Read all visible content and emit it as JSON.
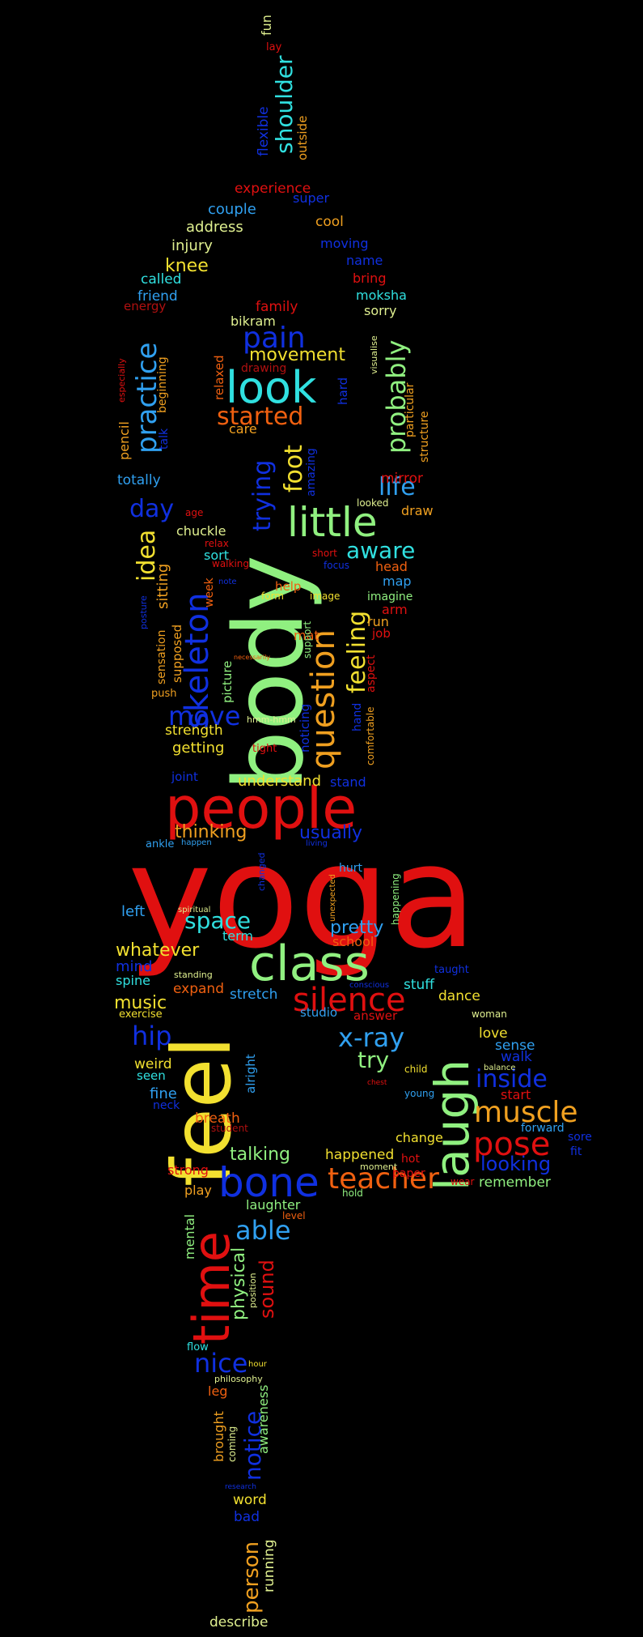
{
  "palette": {
    "background": "#000000",
    "red": "#e01010",
    "orange": "#f07a20",
    "yellow": "#f2e030",
    "green": "#90f080",
    "cyan": "#30e0e0",
    "sky": "#30a0f0",
    "blue": "#1030e0",
    "lightyellow": "#e0f090",
    "darkred": "#b01010"
  },
  "words": [
    {
      "t": "yoga",
      "c": "#e01010"
    },
    {
      "t": "body",
      "c": "#90f080"
    },
    {
      "t": "feel",
      "c": "#f2e030"
    },
    {
      "t": "people",
      "c": "#e01010"
    },
    {
      "t": "class",
      "c": "#90f080"
    },
    {
      "t": "time",
      "c": "#e01010"
    },
    {
      "t": "laugh",
      "c": "#90f080"
    },
    {
      "t": "bone",
      "c": "#1030e0"
    },
    {
      "t": "look",
      "c": "#30e0e0"
    },
    {
      "t": "little",
      "c": "#90f080"
    },
    {
      "t": "skeleton",
      "c": "#1030e0"
    },
    {
      "t": "question",
      "c": "#f0a020"
    },
    {
      "t": "silence",
      "c": "#e01010"
    },
    {
      "t": "pose",
      "c": "#e01010"
    },
    {
      "t": "teacher",
      "c": "#f06010"
    },
    {
      "t": "muscle",
      "c": "#f0a020"
    },
    {
      "t": "x-ray",
      "c": "#30a0f0"
    },
    {
      "t": "practice",
      "c": "#30a0f0"
    },
    {
      "t": "pain",
      "c": "#1030e0"
    },
    {
      "t": "started",
      "c": "#f06010"
    },
    {
      "t": "probably",
      "c": "#90f080"
    },
    {
      "t": "inside",
      "c": "#1030e0"
    },
    {
      "t": "able",
      "c": "#30a0f0"
    },
    {
      "t": "nice",
      "c": "#1030e0"
    },
    {
      "t": "move",
      "c": "#1030e0"
    },
    {
      "t": "hip",
      "c": "#1030e0"
    },
    {
      "t": "space",
      "c": "#30e0e0"
    },
    {
      "t": "day",
      "c": "#1030e0"
    },
    {
      "t": "life",
      "c": "#30a0f0"
    },
    {
      "t": "aware",
      "c": "#30e0e0"
    },
    {
      "t": "foot",
      "c": "#f2e030"
    },
    {
      "t": "trying",
      "c": "#1030e0"
    },
    {
      "t": "idea",
      "c": "#f2e030"
    },
    {
      "t": "feeling",
      "c": "#f2e030"
    },
    {
      "t": "shoulder",
      "c": "#30e0e0"
    },
    {
      "t": "try",
      "c": "#90f080"
    },
    {
      "t": "notice",
      "c": "#1030e0"
    },
    {
      "t": "sound",
      "c": "#e01010"
    },
    {
      "t": "person",
      "c": "#f0a020"
    },
    {
      "t": "looking",
      "c": "#1030e0"
    },
    {
      "t": "movement",
      "c": "#f2e030"
    },
    {
      "t": "whatever",
      "c": "#f2e030"
    },
    {
      "t": "talking",
      "c": "#90f080"
    },
    {
      "t": "pretty",
      "c": "#30a0f0"
    },
    {
      "t": "usually",
      "c": "#1030e0"
    },
    {
      "t": "thinking",
      "c": "#f0a020"
    },
    {
      "t": "physical",
      "c": "#90f080"
    },
    {
      "t": "sitting",
      "c": "#f0a020"
    },
    {
      "t": "music",
      "c": "#f2e030"
    },
    {
      "t": "experience",
      "c": "#e01010"
    },
    {
      "t": "understand",
      "c": "#f2e030"
    },
    {
      "t": "getting",
      "c": "#f2e030"
    },
    {
      "t": "knee",
      "c": "#f2e030"
    },
    {
      "t": "couple",
      "c": "#30a0f0"
    },
    {
      "t": "address",
      "c": "#e0f090"
    },
    {
      "t": "injury",
      "c": "#e0f090"
    },
    {
      "t": "called",
      "c": "#30e0e0"
    },
    {
      "t": "friend",
      "c": "#30a0f0"
    },
    {
      "t": "energy",
      "c": "#b01010"
    },
    {
      "t": "bikram",
      "c": "#e0f090"
    },
    {
      "t": "family",
      "c": "#e01010"
    },
    {
      "t": "moving",
      "c": "#1030e0"
    },
    {
      "t": "name",
      "c": "#1030e0"
    },
    {
      "t": "bring",
      "c": "#e01010"
    },
    {
      "t": "moksha",
      "c": "#30e0e0"
    },
    {
      "t": "sorry",
      "c": "#e0f090"
    },
    {
      "t": "cool",
      "c": "#f0a020"
    },
    {
      "t": "super",
      "c": "#1030e0"
    },
    {
      "t": "flexible",
      "c": "#1030e0"
    },
    {
      "t": "outside",
      "c": "#f0a020"
    },
    {
      "t": "fun",
      "c": "#e0f090"
    },
    {
      "t": "lay",
      "c": "#e01010"
    },
    {
      "t": "care",
      "c": "#f0a020"
    },
    {
      "t": "relaxed",
      "c": "#f06010"
    },
    {
      "t": "drawing",
      "c": "#b01010"
    },
    {
      "t": "beginning",
      "c": "#f0a020"
    },
    {
      "t": "pencil",
      "c": "#f0a020"
    },
    {
      "t": "especially",
      "c": "#e01010"
    },
    {
      "t": "totally",
      "c": "#30a0f0"
    },
    {
      "t": "talk",
      "c": "#1030e0"
    },
    {
      "t": "age",
      "c": "#e01010"
    },
    {
      "t": "chuckle",
      "c": "#e0f090"
    },
    {
      "t": "sort",
      "c": "#30e0e0"
    },
    {
      "t": "relax",
      "c": "#e01010"
    },
    {
      "t": "walking",
      "c": "#e01010"
    },
    {
      "t": "note",
      "c": "#1030e0"
    },
    {
      "t": "week",
      "c": "#f06010"
    },
    {
      "t": "sensation",
      "c": "#f0a020"
    },
    {
      "t": "posture",
      "c": "#1030e0"
    },
    {
      "t": "supposed",
      "c": "#f0a020"
    },
    {
      "t": "picture",
      "c": "#90f080"
    },
    {
      "t": "strength",
      "c": "#f2e030"
    },
    {
      "t": "push",
      "c": "#f0a020"
    },
    {
      "t": "joint",
      "c": "#1030e0"
    },
    {
      "t": "tight",
      "c": "#e01010"
    },
    {
      "t": "hmm-hmm",
      "c": "#e0f090"
    },
    {
      "t": "necessarily",
      "c": "#f06010"
    },
    {
      "t": "mat",
      "c": "#f06010"
    },
    {
      "t": "noticing",
      "c": "#1030e0"
    },
    {
      "t": "support",
      "c": "#90f080"
    },
    {
      "t": "help",
      "c": "#f06010"
    },
    {
      "t": "form",
      "c": "#f2e030"
    },
    {
      "t": "image",
      "c": "#f2e030"
    },
    {
      "t": "short",
      "c": "#e01010"
    },
    {
      "t": "focus",
      "c": "#1030e0"
    },
    {
      "t": "hand",
      "c": "#1030e0"
    },
    {
      "t": "comfortable",
      "c": "#f0a020"
    },
    {
      "t": "aspect",
      "c": "#e01010"
    },
    {
      "t": "stand",
      "c": "#1030e0"
    },
    {
      "t": "map",
      "c": "#30a0f0"
    },
    {
      "t": "imagine",
      "c": "#90f080"
    },
    {
      "t": "arm",
      "c": "#e01010"
    },
    {
      "t": "run",
      "c": "#f0a020"
    },
    {
      "t": "job",
      "c": "#e01010"
    },
    {
      "t": "head",
      "c": "#f06010"
    },
    {
      "t": "draw",
      "c": "#f0a020"
    },
    {
      "t": "looked",
      "c": "#e0f090"
    },
    {
      "t": "mirror",
      "c": "#e01010"
    },
    {
      "t": "hard",
      "c": "#1030e0"
    },
    {
      "t": "amazing",
      "c": "#1030e0"
    },
    {
      "t": "structure",
      "c": "#f0a020"
    },
    {
      "t": "particular",
      "c": "#f0a020"
    },
    {
      "t": "visualise",
      "c": "#e0f090"
    },
    {
      "t": "ankle",
      "c": "#30a0f0"
    },
    {
      "t": "happen",
      "c": "#30a0f0"
    },
    {
      "t": "living",
      "c": "#1030e0"
    },
    {
      "t": "changed",
      "c": "#1030e0"
    },
    {
      "t": "hurt",
      "c": "#30a0f0"
    },
    {
      "t": "unexpected",
      "c": "#f0a020"
    },
    {
      "t": "happening",
      "c": "#90f080"
    },
    {
      "t": "left",
      "c": "#30a0f0"
    },
    {
      "t": "spiritual",
      "c": "#e0f090"
    },
    {
      "t": "term",
      "c": "#30e0e0"
    },
    {
      "t": "school",
      "c": "#f06010"
    },
    {
      "t": "mind",
      "c": "#1030e0"
    },
    {
      "t": "spine",
      "c": "#30e0e0"
    },
    {
      "t": "standing",
      "c": "#e0f090"
    },
    {
      "t": "expand",
      "c": "#f06010"
    },
    {
      "t": "stretch",
      "c": "#30a0f0"
    },
    {
      "t": "conscious",
      "c": "#1030e0"
    },
    {
      "t": "stuff",
      "c": "#30e0e0"
    },
    {
      "t": "taught",
      "c": "#1030e0"
    },
    {
      "t": "dance",
      "c": "#f2e030"
    },
    {
      "t": "exercise",
      "c": "#f2e030"
    },
    {
      "t": "studio",
      "c": "#30a0f0"
    },
    {
      "t": "answer",
      "c": "#e01010"
    },
    {
      "t": "woman",
      "c": "#e0f090"
    },
    {
      "t": "love",
      "c": "#f2e030"
    },
    {
      "t": "weird",
      "c": "#f2e030"
    },
    {
      "t": "seen",
      "c": "#30e0e0"
    },
    {
      "t": "alright",
      "c": "#30a0f0"
    },
    {
      "t": "sense",
      "c": "#30a0f0"
    },
    {
      "t": "walk",
      "c": "#1030e0"
    },
    {
      "t": "child",
      "c": "#f2e030"
    },
    {
      "t": "balance",
      "c": "#e0f090"
    },
    {
      "t": "chest",
      "c": "#e01010"
    },
    {
      "t": "young",
      "c": "#30a0f0"
    },
    {
      "t": "start",
      "c": "#e01010"
    },
    {
      "t": "fine",
      "c": "#30a0f0"
    },
    {
      "t": "neck",
      "c": "#1030e0"
    },
    {
      "t": "breath",
      "c": "#f06010"
    },
    {
      "t": "student",
      "c": "#b01010"
    },
    {
      "t": "change",
      "c": "#f2e030"
    },
    {
      "t": "forward",
      "c": "#30a0f0"
    },
    {
      "t": "sore",
      "c": "#1030e0"
    },
    {
      "t": "fit",
      "c": "#1030e0"
    },
    {
      "t": "happened",
      "c": "#f2e030"
    },
    {
      "t": "hot",
      "c": "#e01010"
    },
    {
      "t": "wear",
      "c": "#e01010"
    },
    {
      "t": "remember",
      "c": "#90f080"
    },
    {
      "t": "strong",
      "c": "#e01010"
    },
    {
      "t": "moment",
      "c": "#e0f090"
    },
    {
      "t": "paper",
      "c": "#e01010"
    },
    {
      "t": "hold",
      "c": "#90f080"
    },
    {
      "t": "play",
      "c": "#f0a020"
    },
    {
      "t": "laughter",
      "c": "#90f080"
    },
    {
      "t": "level",
      "c": "#f06010"
    },
    {
      "t": "mental",
      "c": "#90f080"
    },
    {
      "t": "position",
      "c": "#e0f090"
    },
    {
      "t": "hour",
      "c": "#f2e030"
    },
    {
      "t": "flow",
      "c": "#30e0e0"
    },
    {
      "t": "philosophy",
      "c": "#e0f090"
    },
    {
      "t": "leg",
      "c": "#f06010"
    },
    {
      "t": "brought",
      "c": "#f0a020"
    },
    {
      "t": "coming",
      "c": "#e0f090"
    },
    {
      "t": "awareness",
      "c": "#90f080"
    },
    {
      "t": "research",
      "c": "#1030e0"
    },
    {
      "t": "word",
      "c": "#f2e030"
    },
    {
      "t": "bad",
      "c": "#1030e0"
    },
    {
      "t": "running",
      "c": "#e0f090"
    },
    {
      "t": "describe",
      "c": "#e0f090"
    }
  ]
}
